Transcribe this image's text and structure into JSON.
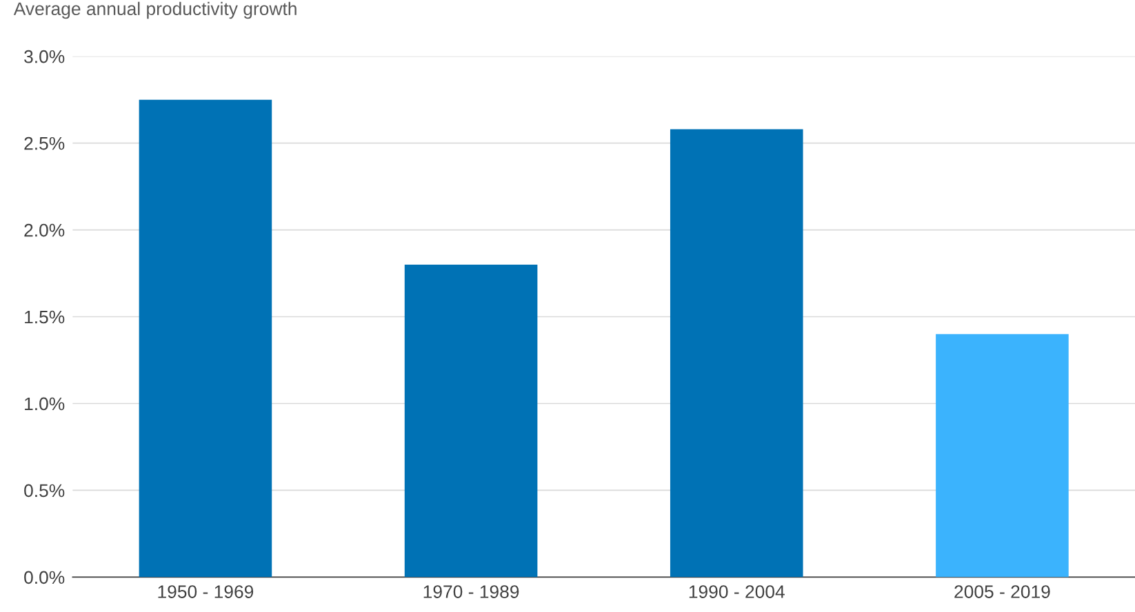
{
  "chart_data": {
    "type": "bar",
    "title": "Average annual productivity growth",
    "categories": [
      "1950 - 1969",
      "1970 - 1989",
      "1990 - 2004",
      "2005 - 2019"
    ],
    "values": [
      2.75,
      1.8,
      2.58,
      1.4
    ],
    "colors": [
      "#0072b5",
      "#0072b5",
      "#0072b5",
      "#3bb3fd"
    ],
    "ylim": [
      0,
      3
    ],
    "yticks": [
      {
        "value": 0,
        "label": "0.0%"
      },
      {
        "value": 0.5,
        "label": "0.5%"
      },
      {
        "value": 1,
        "label": "1.0%"
      },
      {
        "value": 1.5,
        "label": "1.5%"
      },
      {
        "value": 2,
        "label": "2.0%"
      },
      {
        "value": 2.5,
        "label": "2.5%"
      },
      {
        "value": 3,
        "label": "3.0%"
      }
    ],
    "grid": "y"
  }
}
